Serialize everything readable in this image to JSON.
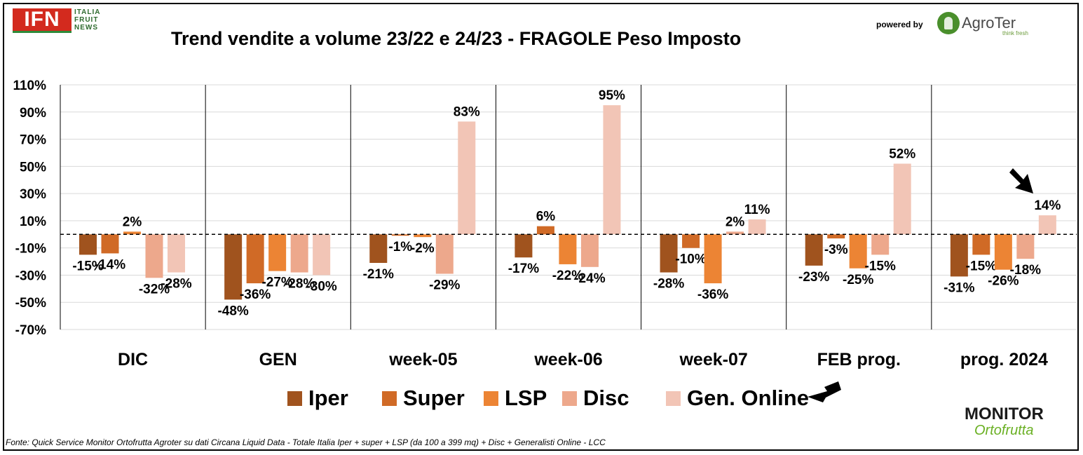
{
  "header": {
    "logo_text": "IFN",
    "logo_lines": [
      "ITALIA",
      "FRUIT",
      "NEWS"
    ],
    "title": "Trend vendite a volume 23/22 e 24/23 - FRAGOLE Peso Imposto",
    "powered_by": "powered by",
    "partner_name": "AgroTer",
    "partner_tagline": "think fresh"
  },
  "chart_data": {
    "type": "bar",
    "title": "Trend vendite a volume 23/22 e 24/23 - FRAGOLE Peso Imposto",
    "categories": [
      "DIC",
      "GEN",
      "week-05",
      "week-06",
      "week-07",
      "FEB prog.",
      "prog. 2024"
    ],
    "ylim": [
      -70,
      110
    ],
    "yticks": [
      "110%",
      "90%",
      "70%",
      "50%",
      "30%",
      "10%",
      "-10%",
      "-30%",
      "-50%",
      "-70%"
    ],
    "ytick_values": [
      110,
      90,
      70,
      50,
      30,
      10,
      -10,
      -30,
      -50,
      -70
    ],
    "baseline": 0,
    "grid": true,
    "legend_position": "bottom",
    "series": [
      {
        "name": "Iper",
        "color": "#a0531e",
        "values": [
          -15,
          -48,
          -21,
          -17,
          -28,
          -23,
          -31
        ],
        "labels": [
          "-15%",
          "-48%",
          "-21%",
          "-17%",
          "-28%",
          "-23%",
          "-31%"
        ]
      },
      {
        "name": "Super",
        "color": "#d06a26",
        "values": [
          -14,
          -36,
          -1,
          6,
          -10,
          -3,
          -15
        ],
        "labels": [
          "-14%",
          "-36%",
          "-1%",
          "6%",
          "-10%",
          "-3%",
          "-15%"
        ]
      },
      {
        "name": "LSP",
        "color": "#ec8434",
        "values": [
          2,
          -27,
          -2,
          -22,
          -36,
          -25,
          -26
        ],
        "labels": [
          "2%",
          "-27%",
          "-2%",
          "-22%",
          "-36%",
          "-25%",
          "-26%"
        ]
      },
      {
        "name": "Disc",
        "color": "#eda88c",
        "values": [
          -32,
          -28,
          -29,
          -24,
          2,
          -15,
          -18
        ],
        "labels": [
          "-32%",
          "-28%",
          "-29%",
          "-24%",
          "2%",
          "-15%",
          "-18%"
        ]
      },
      {
        "name": "Gen. Online",
        "color": "#f2c5b6",
        "values": [
          -28,
          -30,
          83,
          95,
          11,
          52,
          14
        ],
        "labels": [
          "-28%",
          "-30%",
          "83%",
          "95%",
          "11%",
          "52%",
          "14%"
        ]
      }
    ]
  },
  "footer": {
    "source": "Fonte: Quick Service Monitor Ortofrutta Agroter su dati Circana Liquid Data - Totale Italia Iper + super + LSP (da 100 a 399 mq) + Disc + Generalisti Online - LCC"
  },
  "branding": {
    "monitor_line1": "MONITOR",
    "monitor_line2": "Ortofrutta"
  }
}
